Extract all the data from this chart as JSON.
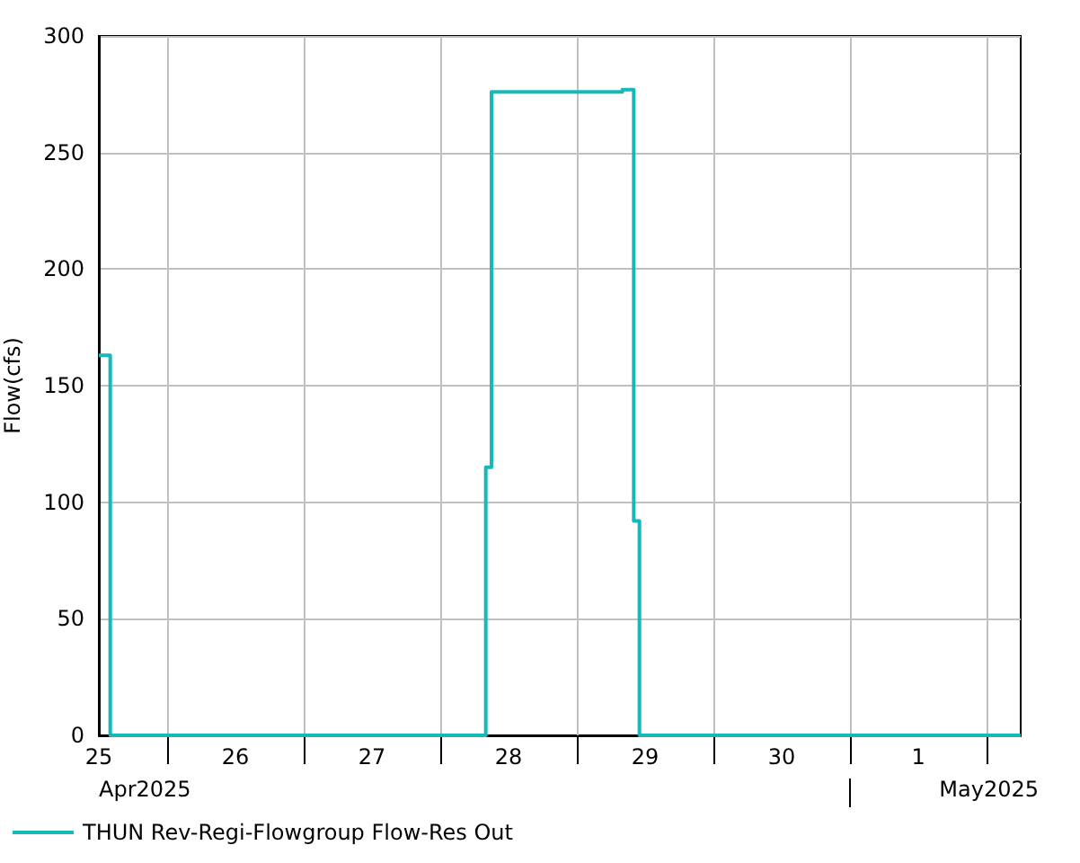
{
  "chart_data": {
    "type": "step",
    "ylabel": "Flow(cfs)",
    "x": [
      "2025-04-25T12:00",
      "2025-04-25T14:00",
      "2025-04-28T08:00",
      "2025-04-28T09:00",
      "2025-04-29T08:00",
      "2025-04-29T10:00",
      "2025-04-29T11:00",
      "2025-05-02T06:00"
    ],
    "series": [
      {
        "name": "THUN Rev-Regi-Flowgroup Flow-Res Out",
        "color": "#17b8b8",
        "values": [
          163,
          0,
          115,
          276,
          277,
          92,
          0,
          0
        ]
      }
    ],
    "xlim": [
      "2025-04-25T12:00",
      "2025-05-02T06:00"
    ],
    "xticks": [
      {
        "value": "2025-04-25T12:00",
        "label": "25"
      },
      {
        "value": "2025-04-26T00:00",
        "label": null
      },
      {
        "value": "2025-04-26T12:00",
        "label": "26"
      },
      {
        "value": "2025-04-27T00:00",
        "label": null
      },
      {
        "value": "2025-04-27T12:00",
        "label": "27"
      },
      {
        "value": "2025-04-28T00:00",
        "label": null
      },
      {
        "value": "2025-04-28T12:00",
        "label": "28"
      },
      {
        "value": "2025-04-29T00:00",
        "label": null
      },
      {
        "value": "2025-04-29T12:00",
        "label": "29"
      },
      {
        "value": "2025-04-30T00:00",
        "label": null
      },
      {
        "value": "2025-04-30T12:00",
        "label": "30"
      },
      {
        "value": "2025-05-01T00:00",
        "label": null
      },
      {
        "value": "2025-05-01T12:00",
        "label": "1"
      },
      {
        "value": "2025-05-02T00:00",
        "label": null
      }
    ],
    "ylim": [
      0,
      300
    ],
    "yticks": [
      0,
      50,
      100,
      150,
      200,
      250,
      300
    ],
    "annotations": [
      "Apr2025",
      "May2025"
    ],
    "grid": true,
    "legend": "bottom left",
    "marker": "none",
    "line_style": "solid"
  }
}
